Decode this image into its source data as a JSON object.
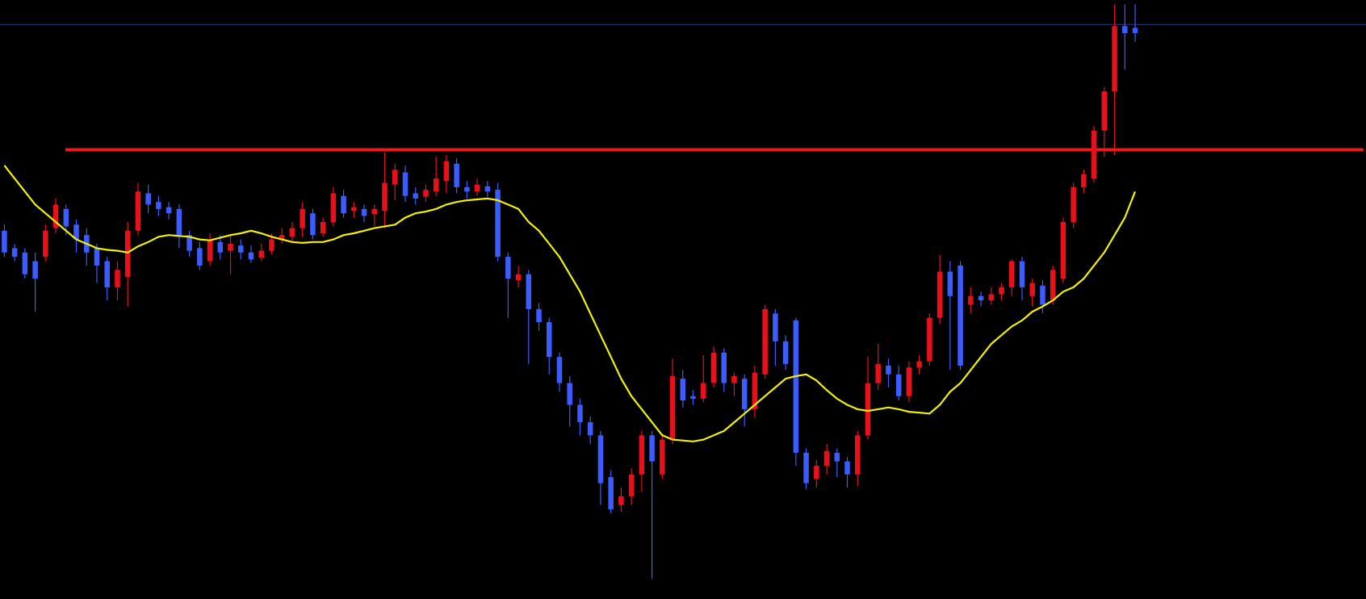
{
  "chart_data": {
    "type": "candlestick",
    "up_color": "#e8101a",
    "down_color": "#3b5cff",
    "ylim": [
      0,
      688
    ],
    "open": [
      423,
      403,
      398,
      388,
      393,
      426,
      448,
      430,
      418,
      403,
      388,
      358,
      370,
      423,
      466,
      456,
      450,
      448,
      418,
      403,
      388,
      410,
      400,
      406,
      398,
      392,
      400,
      413,
      416,
      426,
      443,
      420,
      433,
      463,
      446,
      448,
      442,
      446,
      476,
      490,
      466,
      462,
      468,
      480,
      500,
      473,
      468,
      474,
      470,
      393,
      366,
      373,
      333,
      318,
      278,
      248,
      223,
      203,
      188,
      140,
      108,
      118,
      143,
      188,
      143,
      183,
      253,
      233,
      230,
      248,
      283,
      248,
      253,
      218,
      258,
      328,
      296,
      320,
      168,
      138,
      153,
      168,
      158,
      143,
      188,
      248,
      268,
      258,
      233,
      266,
      273,
      323,
      376,
      383,
      338,
      348,
      343,
      350,
      358,
      388,
      348,
      360,
      343,
      368,
      433,
      473,
      483,
      538,
      583,
      658,
      656
    ],
    "high": [
      430,
      408,
      403,
      398,
      430,
      460,
      453,
      436,
      426,
      408,
      393,
      388,
      433,
      478,
      476,
      463,
      456,
      453,
      423,
      410,
      420,
      418,
      418,
      413,
      406,
      408,
      420,
      426,
      433,
      456,
      448,
      438,
      473,
      470,
      456,
      453,
      453,
      513,
      500,
      498,
      473,
      476,
      508,
      510,
      506,
      480,
      483,
      480,
      478,
      398,
      383,
      378,
      340,
      323,
      283,
      256,
      230,
      210,
      193,
      148,
      128,
      150,
      193,
      193,
      190,
      276,
      263,
      240,
      280,
      290,
      288,
      260,
      258,
      268,
      338,
      333,
      303,
      323,
      173,
      160,
      178,
      173,
      163,
      193,
      278,
      293,
      276,
      268,
      273,
      280,
      328,
      395,
      388,
      388,
      358,
      353,
      358,
      363,
      390,
      393,
      368,
      366,
      383,
      438,
      478,
      493,
      543,
      588,
      683,
      683,
      683
    ],
    "low": [
      393,
      388,
      368,
      330,
      388,
      420,
      418,
      398,
      383,
      363,
      343,
      343,
      336,
      418,
      443,
      440,
      436,
      403,
      393,
      378,
      383,
      390,
      373,
      390,
      386,
      388,
      396,
      408,
      410,
      416,
      413,
      416,
      428,
      438,
      438,
      433,
      428,
      426,
      458,
      456,
      453,
      456,
      463,
      466,
      466,
      460,
      463,
      462,
      388,
      323,
      358,
      270,
      308,
      258,
      238,
      198,
      188,
      178,
      108,
      98,
      100,
      108,
      123,
      23,
      138,
      178,
      220,
      223,
      226,
      243,
      238,
      233,
      198,
      208,
      253,
      268,
      263,
      153,
      126,
      128,
      143,
      140,
      128,
      130,
      183,
      240,
      243,
      228,
      226,
      258,
      268,
      316,
      263,
      263,
      328,
      336,
      338,
      343,
      348,
      343,
      336,
      328,
      338,
      363,
      426,
      466,
      478,
      508,
      510,
      608,
      640
    ],
    "close": [
      398,
      393,
      373,
      368,
      423,
      453,
      428,
      413,
      398,
      383,
      358,
      378,
      423,
      468,
      453,
      448,
      443,
      418,
      400,
      383,
      413,
      398,
      408,
      398,
      390,
      400,
      413,
      418,
      426,
      448,
      418,
      433,
      466,
      443,
      450,
      440,
      448,
      478,
      493,
      463,
      460,
      470,
      483,
      503,
      473,
      468,
      476,
      468,
      393,
      368,
      373,
      333,
      318,
      278,
      248,
      223,
      203,
      188,
      133,
      103,
      118,
      143,
      188,
      158,
      183,
      256,
      228,
      230,
      248,
      283,
      248,
      256,
      218,
      260,
      333,
      296,
      270,
      168,
      133,
      153,
      170,
      158,
      143,
      188,
      248,
      270,
      258,
      233,
      266,
      273,
      323,
      376,
      348,
      268,
      348,
      343,
      350,
      358,
      388,
      358,
      363,
      338,
      378,
      433,
      473,
      488,
      538,
      583,
      658,
      650,
      650
    ],
    "ma": {
      "color": "#f2f200",
      "values": [
        498,
        483,
        468,
        453,
        443,
        433,
        423,
        413,
        408,
        403,
        401,
        400,
        398,
        405,
        410,
        416,
        418,
        417,
        416,
        413,
        412,
        415,
        418,
        420,
        423,
        420,
        416,
        413,
        410,
        409,
        410,
        410,
        413,
        418,
        420,
        423,
        426,
        428,
        430,
        438,
        443,
        445,
        448,
        453,
        456,
        458,
        459,
        460,
        458,
        453,
        448,
        433,
        423,
        408,
        393,
        373,
        353,
        328,
        303,
        278,
        253,
        233,
        218,
        203,
        188,
        183,
        182,
        181,
        183,
        188,
        193,
        203,
        213,
        223,
        233,
        243,
        253,
        256,
        258,
        251,
        240,
        230,
        223,
        218,
        216,
        218,
        220,
        218,
        215,
        214,
        213,
        223,
        238,
        248,
        263,
        278,
        293,
        303,
        313,
        320,
        330,
        336,
        343,
        353,
        358,
        368,
        383,
        398,
        418,
        438,
        468
      ]
    },
    "hlines": [
      {
        "value": 516,
        "color": "#e81c22"
      },
      {
        "value": 660,
        "color": "#2e3a8c"
      }
    ]
  }
}
